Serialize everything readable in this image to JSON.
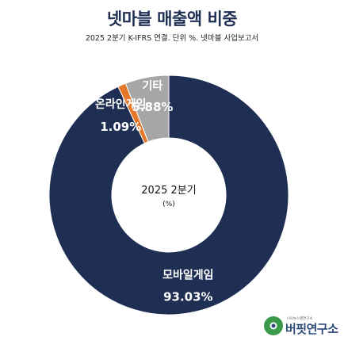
{
  "title": "넷마블 매출액 비중",
  "subtitle": "2025 2분기 K-IFRS 연결. 단위 %. 넷마블 사업보고서",
  "chart_data": {
    "type": "pie",
    "donut": true,
    "center_label": "2025 2분기",
    "center_unit": "(%)",
    "series": [
      {
        "name": "모바일게임",
        "value": 93.03,
        "value_label": "93.03%",
        "color": "#1f2f54"
      },
      {
        "name": "온라인게임",
        "value": 1.09,
        "value_label": "1.09%",
        "color": "#e5772a"
      },
      {
        "name": "기타",
        "value": 5.88,
        "value_label": "5.88%",
        "color": "#a6a6a6"
      }
    ],
    "start": "12 o'clock",
    "direction": "clockwise",
    "legend": "none (labels on slices)"
  },
  "logo": {
    "small_text": "(사)뉴스랩연구소",
    "name": "버핏연구소"
  }
}
